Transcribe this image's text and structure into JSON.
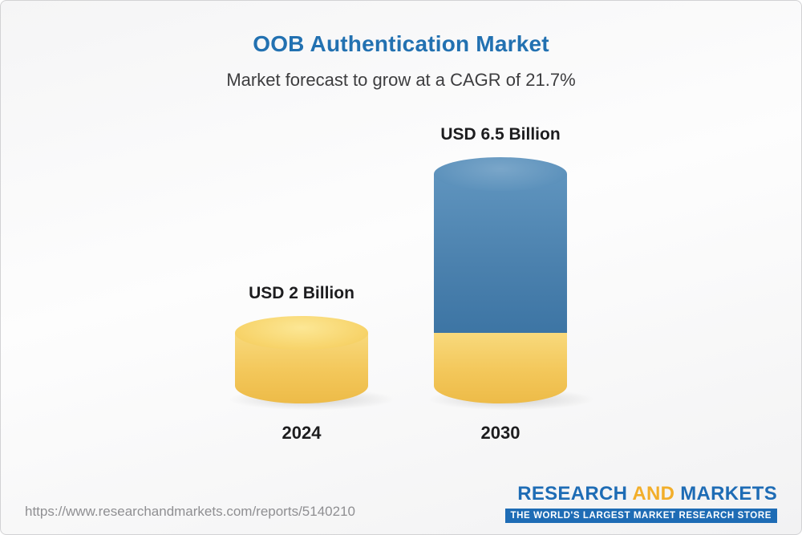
{
  "header": {
    "title": "OOB Authentication Market",
    "subtitle": "Market forecast to grow at a CAGR of 21.7%"
  },
  "chart_data": {
    "type": "bar",
    "variant": "3d-cylinder",
    "title": "OOB Authentication Market",
    "subtitle": "Market forecast to grow at a CAGR of 21.7%",
    "cagr_percent": 21.7,
    "categories": [
      "2024",
      "2030"
    ],
    "values": [
      2,
      6.5
    ],
    "unit": "USD Billion",
    "value_labels": [
      "USD 2 Billion",
      "USD 6.5 Billion"
    ],
    "series_colors": {
      "base_segment": "#F3C75A",
      "growth_segment": "#4C82AF"
    },
    "axes": "none",
    "gridlines": false,
    "legend": false,
    "notes": "2030 bar is a stacked cylinder: gold base equal to 2024 value, blue growth segment on top"
  },
  "footer": {
    "url": "https://www.researchandmarkets.com/reports/5140210",
    "logo": {
      "word1": "RESEARCH",
      "word2": "AND",
      "word3": "MARKETS",
      "tagline": "THE WORLD'S LARGEST MARKET RESEARCH STORE"
    }
  }
}
